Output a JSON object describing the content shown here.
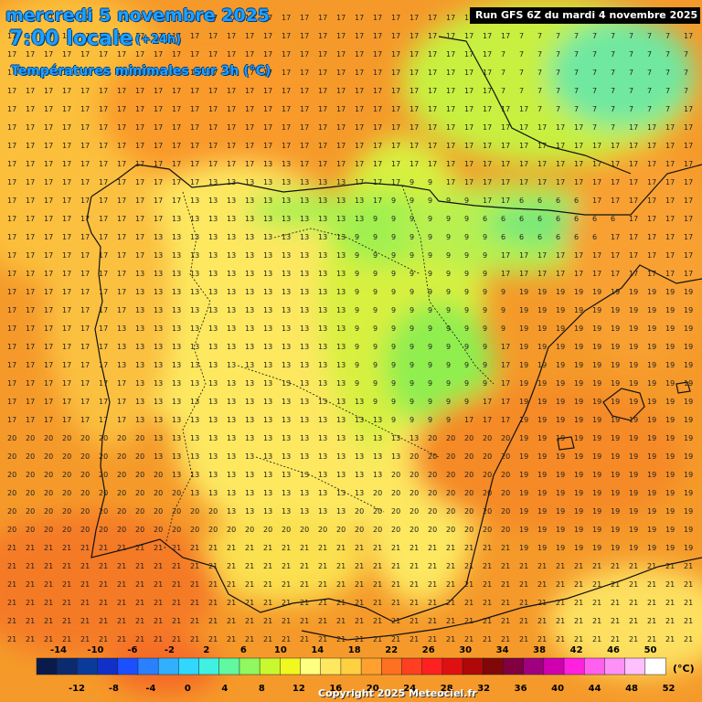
{
  "header": {
    "date": "mercredi 5 novembre 2025",
    "time": "7:00 locale",
    "offset": "(+24h)",
    "product": "Températures minimales sur 3h (°C)"
  },
  "run_info": "Run GFS 6Z du mardi 4 novembre 2025",
  "copyright": "Copyright 2025 Meteociel.fr",
  "unit": "(°C)",
  "legend": {
    "top_labels": [
      "-14",
      "-10",
      "-6",
      "-2",
      "2",
      "6",
      "10",
      "14",
      "18",
      "22",
      "26",
      "30",
      "34",
      "38",
      "42",
      "46",
      "50"
    ],
    "bottom_labels": [
      "-12",
      "-8",
      "-4",
      "0",
      "4",
      "8",
      "12",
      "16",
      "20",
      "24",
      "28",
      "32",
      "36",
      "40",
      "44",
      "48",
      "52"
    ],
    "colors": [
      "#0a1a4a",
      "#0c2a6e",
      "#0a3a9a",
      "#1030c8",
      "#1a50ff",
      "#2a80ff",
      "#30b0ff",
      "#30d8ff",
      "#40f0e0",
      "#60f8a0",
      "#90f860",
      "#c8f830",
      "#f0f820",
      "#ffff80",
      "#ffe860",
      "#ffd040",
      "#ffa030",
      "#ff7020",
      "#ff4020",
      "#ff2020",
      "#e01010",
      "#b00808",
      "#800808",
      "#800040",
      "#a00080",
      "#d000b0",
      "#ff20e0",
      "#ff60f0",
      "#ff90f8",
      "#ffc0ff",
      "#ffffff"
    ]
  }
}
